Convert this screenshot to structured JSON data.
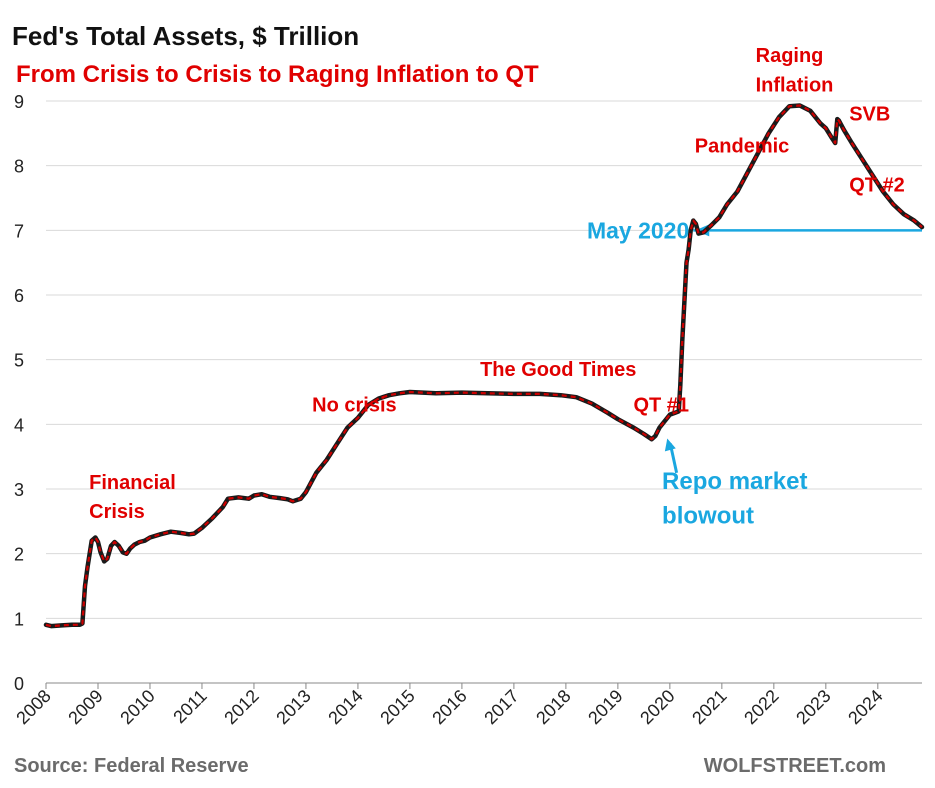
{
  "colors": {
    "line_main": "#cc0000",
    "line_dots": "#1a1a1a",
    "subtitle": "#e00000",
    "annotation_red": "#e00000",
    "annotation_blue": "#1aa7e0",
    "grid": "#d9d9d9",
    "source_text": "#6b6b6b"
  },
  "chart_data": {
    "type": "line",
    "title": "Fed's Total Assets, $ Trillion",
    "subtitle": "From Crisis to Crisis to Raging Inflation to QT",
    "xlabel": "",
    "ylabel": "",
    "xlim": [
      2008.0,
      2024.85
    ],
    "ylim": [
      0,
      9
    ],
    "grid": true,
    "legend": "none",
    "x_ticks": [
      "2008",
      "2009",
      "2010",
      "2011",
      "2012",
      "2013",
      "2014",
      "2015",
      "2016",
      "2017",
      "2018",
      "2019",
      "2020",
      "2021",
      "2022",
      "2023",
      "2024"
    ],
    "y_ticks": [
      "0",
      "1",
      "2",
      "3",
      "4",
      "5",
      "6",
      "7",
      "8",
      "9"
    ],
    "series": [
      {
        "name": "",
        "points": [
          [
            2008.0,
            0.9
          ],
          [
            2008.1,
            0.88
          ],
          [
            2008.3,
            0.89
          ],
          [
            2008.5,
            0.9
          ],
          [
            2008.65,
            0.9
          ],
          [
            2008.7,
            0.92
          ],
          [
            2008.75,
            1.5
          ],
          [
            2008.8,
            1.8
          ],
          [
            2008.88,
            2.2
          ],
          [
            2008.95,
            2.25
          ],
          [
            2009.0,
            2.18
          ],
          [
            2009.05,
            2.02
          ],
          [
            2009.12,
            1.88
          ],
          [
            2009.18,
            1.92
          ],
          [
            2009.25,
            2.12
          ],
          [
            2009.32,
            2.18
          ],
          [
            2009.4,
            2.12
          ],
          [
            2009.48,
            2.02
          ],
          [
            2009.55,
            2.0
          ],
          [
            2009.62,
            2.08
          ],
          [
            2009.7,
            2.14
          ],
          [
            2009.8,
            2.18
          ],
          [
            2009.9,
            2.2
          ],
          [
            2010.0,
            2.25
          ],
          [
            2010.2,
            2.3
          ],
          [
            2010.4,
            2.34
          ],
          [
            2010.6,
            2.32
          ],
          [
            2010.75,
            2.3
          ],
          [
            2010.85,
            2.31
          ],
          [
            2011.0,
            2.4
          ],
          [
            2011.2,
            2.55
          ],
          [
            2011.4,
            2.72
          ],
          [
            2011.5,
            2.85
          ],
          [
            2011.7,
            2.87
          ],
          [
            2011.9,
            2.85
          ],
          [
            2012.0,
            2.9
          ],
          [
            2012.15,
            2.92
          ],
          [
            2012.3,
            2.88
          ],
          [
            2012.5,
            2.86
          ],
          [
            2012.65,
            2.84
          ],
          [
            2012.75,
            2.81
          ],
          [
            2012.9,
            2.85
          ],
          [
            2013.0,
            2.95
          ],
          [
            2013.2,
            3.25
          ],
          [
            2013.4,
            3.45
          ],
          [
            2013.6,
            3.7
          ],
          [
            2013.8,
            3.95
          ],
          [
            2014.0,
            4.1
          ],
          [
            2014.2,
            4.3
          ],
          [
            2014.4,
            4.4
          ],
          [
            2014.6,
            4.45
          ],
          [
            2014.8,
            4.48
          ],
          [
            2015.0,
            4.5
          ],
          [
            2015.5,
            4.48
          ],
          [
            2016.0,
            4.49
          ],
          [
            2016.5,
            4.48
          ],
          [
            2017.0,
            4.47
          ],
          [
            2017.5,
            4.47
          ],
          [
            2017.9,
            4.45
          ],
          [
            2018.2,
            4.42
          ],
          [
            2018.5,
            4.32
          ],
          [
            2018.8,
            4.18
          ],
          [
            2019.0,
            4.08
          ],
          [
            2019.3,
            3.95
          ],
          [
            2019.5,
            3.85
          ],
          [
            2019.65,
            3.77
          ],
          [
            2019.72,
            3.82
          ],
          [
            2019.8,
            3.95
          ],
          [
            2019.9,
            4.05
          ],
          [
            2020.0,
            4.15
          ],
          [
            2020.1,
            4.18
          ],
          [
            2020.17,
            4.2
          ],
          [
            2020.2,
            4.6
          ],
          [
            2020.24,
            5.3
          ],
          [
            2020.28,
            5.9
          ],
          [
            2020.32,
            6.5
          ],
          [
            2020.36,
            6.7
          ],
          [
            2020.4,
            7.0
          ],
          [
            2020.45,
            7.15
          ],
          [
            2020.5,
            7.1
          ],
          [
            2020.55,
            6.95
          ],
          [
            2020.65,
            6.97
          ],
          [
            2020.8,
            7.08
          ],
          [
            2020.95,
            7.2
          ],
          [
            2021.1,
            7.4
          ],
          [
            2021.3,
            7.6
          ],
          [
            2021.5,
            7.9
          ],
          [
            2021.7,
            8.2
          ],
          [
            2021.9,
            8.5
          ],
          [
            2022.1,
            8.75
          ],
          [
            2022.3,
            8.92
          ],
          [
            2022.5,
            8.93
          ],
          [
            2022.7,
            8.85
          ],
          [
            2022.9,
            8.65
          ],
          [
            2023.0,
            8.58
          ],
          [
            2023.1,
            8.45
          ],
          [
            2023.18,
            8.35
          ],
          [
            2023.22,
            8.72
          ],
          [
            2023.25,
            8.7
          ],
          [
            2023.35,
            8.55
          ],
          [
            2023.5,
            8.35
          ],
          [
            2023.7,
            8.1
          ],
          [
            2023.9,
            7.85
          ],
          [
            2024.1,
            7.6
          ],
          [
            2024.3,
            7.4
          ],
          [
            2024.5,
            7.25
          ],
          [
            2024.7,
            7.15
          ],
          [
            2024.85,
            7.05
          ]
        ]
      }
    ],
    "reference_line": {
      "label": "May 2020",
      "y": 7.0,
      "x_start": 2020.45,
      "x_end": 2024.85
    },
    "annotations": [
      {
        "text": "Financial",
        "x": 2008.83,
        "y": 3.0
      },
      {
        "text": "Crisis",
        "x": 2008.83,
        "y": 2.55
      },
      {
        "text": "No crisis",
        "x": 2013.12,
        "y": 4.2
      },
      {
        "text": "The Good Times",
        "x": 2016.35,
        "y": 4.75
      },
      {
        "text": "QT #1",
        "x": 2019.3,
        "y": 4.2
      },
      {
        "text": "Pandemic",
        "x": 2020.48,
        "y": 8.2
      },
      {
        "text": "Raging",
        "x": 2021.65,
        "y": 9.6
      },
      {
        "text": "Inflation",
        "x": 2021.65,
        "y": 9.15
      },
      {
        "text": "SVB",
        "x": 2023.45,
        "y": 8.7
      },
      {
        "text": "QT #2",
        "x": 2023.45,
        "y": 7.6
      }
    ],
    "blue_annotations": [
      {
        "text": "Repo market",
        "x": 2019.85,
        "y": 3.0
      },
      {
        "text": "blowout",
        "x": 2019.85,
        "y": 2.47
      }
    ],
    "arrow": {
      "from": [
        2020.13,
        3.25
      ],
      "to": [
        2019.95,
        3.78
      ]
    },
    "source": "Source: Federal Reserve",
    "credit": "WOLFSTREET.com"
  }
}
